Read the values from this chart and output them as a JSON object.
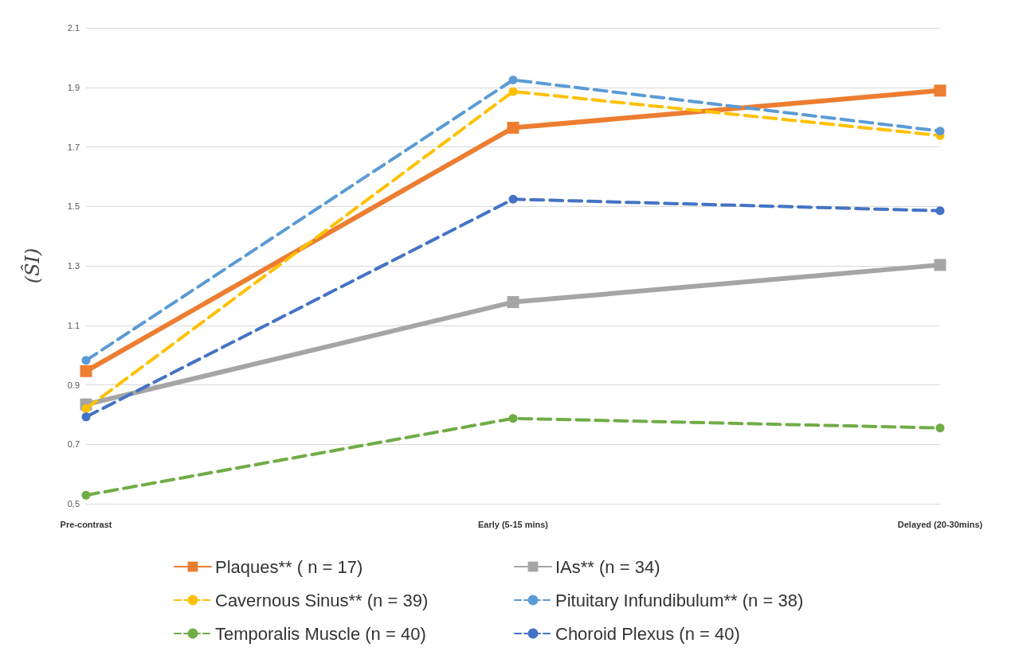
{
  "chart_data": {
    "type": "line",
    "ylabel": "(ŜI)",
    "categories": [
      "Pre-contrast",
      "Early (5-15 mins)",
      "Delayed (20-30mins)"
    ],
    "ylim": [
      0.5,
      2.1
    ],
    "yticks": [
      0.5,
      0.7,
      0.9,
      1.1,
      1.3,
      1.5,
      1.7,
      1.9,
      2.1
    ],
    "grid": "y",
    "legend": "bottom",
    "series": [
      {
        "name": "Plaques** ( n = 17)",
        "color": "#ed7d31",
        "marker": "square",
        "line_style": "solid",
        "values": [
          0.946,
          1.764,
          1.889
        ]
      },
      {
        "name": "IAs** (n = 34)",
        "color": "#a5a5a5",
        "marker": "square",
        "line_style": "solid",
        "values": [
          0.834,
          1.178,
          1.303
        ]
      },
      {
        "name": "Cavernous Sinus** (n = 39)",
        "color": "#ffc000",
        "marker": "circle",
        "line_style": "dashed",
        "values": [
          0.82,
          1.886,
          1.738
        ]
      },
      {
        "name": "Pituitary Infundibulum** (n = 38)",
        "color": "#5b9bd5",
        "marker": "circle",
        "line_style": "dashed",
        "values": [
          0.982,
          1.925,
          1.753
        ]
      },
      {
        "name": "Temporalis Muscle (n = 40)",
        "color": "#70ad47",
        "marker": "circle",
        "line_style": "dashed",
        "values": [
          0.529,
          0.787,
          0.755
        ]
      },
      {
        "name": "Choroid Plexus (n = 40)",
        "color": "#4472c4",
        "marker": "circle",
        "line_style": "dashed",
        "values": [
          0.792,
          1.524,
          1.485
        ]
      }
    ]
  }
}
